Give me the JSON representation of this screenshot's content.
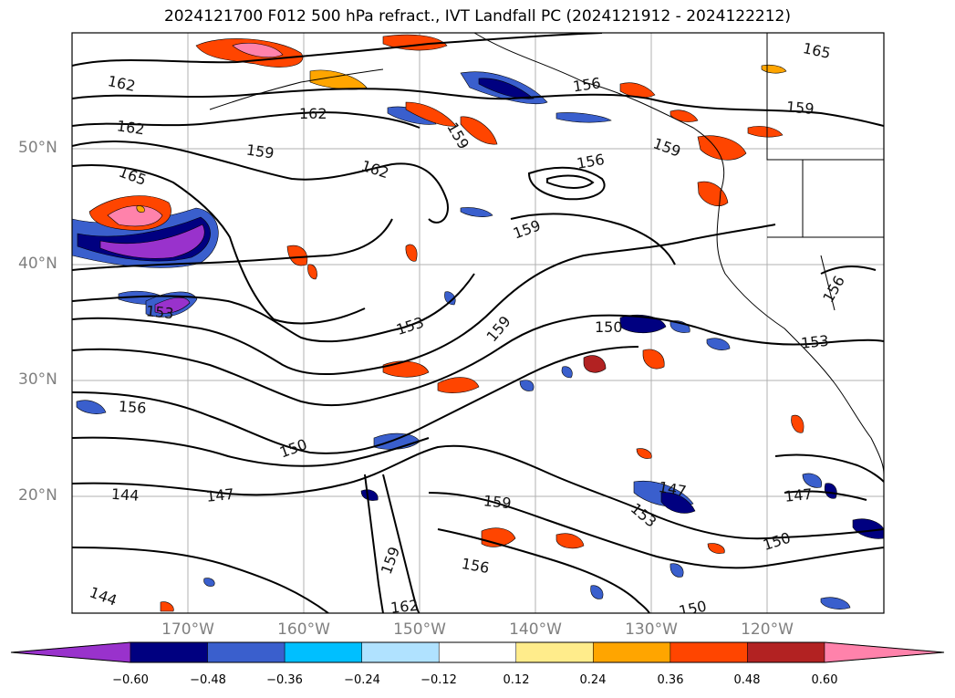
{
  "title": "2024121700 F012 500 hPa refract., IVT Landfall PC (2024121912 - 2024122212)",
  "axes": {
    "lat_labels": [
      "50°N",
      "40°N",
      "30°N",
      "20°N"
    ],
    "lon_labels": [
      "170°W",
      "160°W",
      "150°W",
      "140°W",
      "130°W",
      "120°W"
    ]
  },
  "contour_labels": [
    "165",
    "162",
    "162",
    "159",
    "162",
    "156",
    "159",
    "156",
    "159",
    "165",
    "159",
    "153",
    "153",
    "159",
    "150",
    "156",
    "153",
    "156",
    "150",
    "144",
    "147",
    "159",
    "159",
    "147",
    "153",
    "147",
    "156",
    "162",
    "150",
    "150",
    "144",
    "162",
    "159"
  ],
  "colorbar": {
    "ticks": [
      "−0.60",
      "−0.48",
      "−0.36",
      "−0.24",
      "−0.12",
      "0.12",
      "0.24",
      "0.36",
      "0.48",
      "0.60"
    ],
    "colors": [
      "#9932cc",
      "#000080",
      "#3a5fcd",
      "#00bfff",
      "#b0e2ff",
      "#ffffff",
      "#ffec8b",
      "#ffa500",
      "#ff4500",
      "#b22222",
      "#ff82ab"
    ]
  }
}
